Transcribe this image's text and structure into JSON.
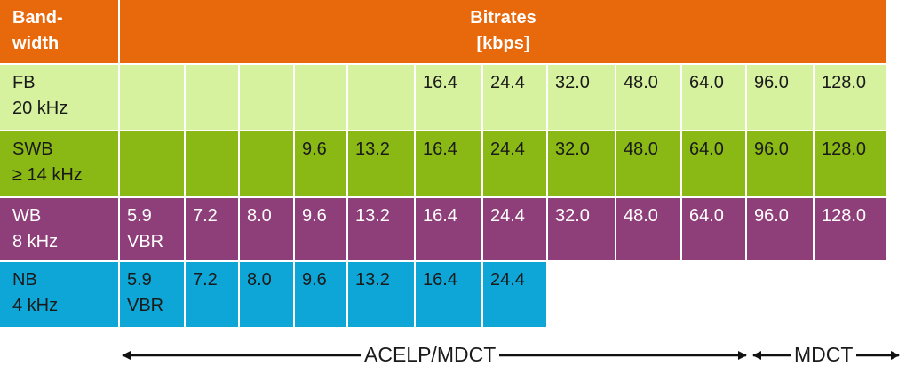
{
  "header": {
    "corner": "Band-\nwidth",
    "bitrates": "Bitrates\n[kbps]"
  },
  "rows": [
    {
      "key": "fb",
      "label": "FB\n20 kHz",
      "cells": [
        "",
        "",
        "",
        "",
        "",
        "16.4",
        "24.4",
        "32.0",
        "48.0",
        "64.0",
        "96.0",
        "128.0"
      ]
    },
    {
      "key": "swb",
      "label": "SWB\n≥ 14 kHz",
      "cells": [
        "",
        "",
        "",
        "9.6",
        "13.2",
        "16.4",
        "24.4",
        "32.0",
        "48.0",
        "64.0",
        "96.0",
        "128.0"
      ]
    },
    {
      "key": "wb",
      "label": "WB\n8 kHz",
      "cells": [
        "5.9\nVBR",
        "7.2",
        "8.0",
        "9.6",
        "13.2",
        "16.4",
        "24.4",
        "32.0",
        "48.0",
        "64.0",
        "96.0",
        "128.0"
      ]
    },
    {
      "key": "nb",
      "label": "NB\n4 kHz",
      "cells": [
        "5.9\nVBR",
        "7.2",
        "8.0",
        "9.6",
        "13.2",
        "16.4",
        "24.4",
        "",
        "",
        "",
        "",
        ""
      ]
    }
  ],
  "legend": {
    "acelp": "ACELP/MDCT",
    "mdct": "MDCT"
  },
  "colors": {
    "header": "#e8680c",
    "fb": "#d7f29e",
    "swb": "#8ab814",
    "wb": "#8e3e78",
    "nb": "#0da6d6"
  }
}
